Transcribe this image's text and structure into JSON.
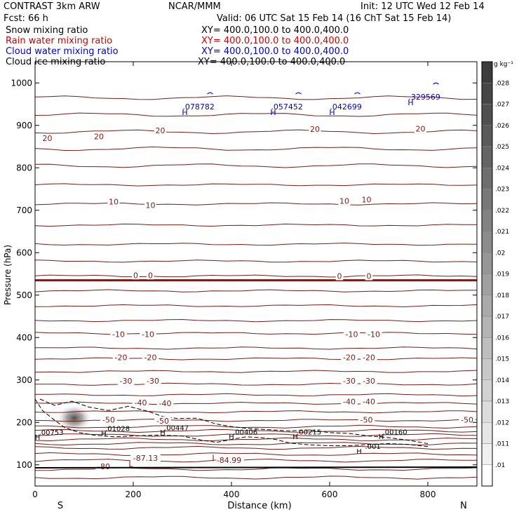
{
  "header": {
    "model": "CONTRAST  3km ARW",
    "org": "NCAR/MMM",
    "init": "Init: 12 UTC Wed 12 Feb 14",
    "fcst": "Fcst:   66 h",
    "valid": "Valid: 06 UTC Sat 15 Feb 14 (16 ChT Sat 15 Feb 14)"
  },
  "legend": [
    {
      "label": "Snow mixing ratio",
      "xy": "XY= 400.0,100.0 to 400.0,400.0",
      "color": "#000000"
    },
    {
      "label": "Rain water mixing ratio",
      "xy": "XY= 400.0,100.0 to 400.0,400.0",
      "color": "#cc0000"
    },
    {
      "label": "Cloud water mixing ratio",
      "xy": "XY= 400.0,100.0 to 400.0,400.0",
      "color": "#0000cc"
    },
    {
      "label": "Cloud ice mixing ratio",
      "xy": "XY= 400.0,100.0 to 400.0,400.0",
      "color": "#000000"
    }
  ],
  "chart_data": {
    "type": "contour-cross-section",
    "xlabel": "Distance (km)",
    "ylabel": "Pressure (hPa)",
    "xlim": [
      0,
      900
    ],
    "ylim": [
      1050,
      50
    ],
    "x_ticks": [
      "0",
      "200",
      "400",
      "600",
      "800"
    ],
    "x_tick_values": [
      0,
      200,
      400,
      600,
      800
    ],
    "y_ticks": [
      "100",
      "200",
      "300",
      "400",
      "500",
      "600",
      "700",
      "800",
      "900",
      "1000"
    ],
    "y_tick_values": [
      100,
      200,
      300,
      400,
      500,
      600,
      700,
      800,
      900,
      1000
    ],
    "direction_left": "S",
    "direction_right": "N",
    "colorbar": {
      "unit": "g kg⁻¹",
      "labels": [
        ".028",
        ".027",
        ".026",
        ".025",
        ".024",
        ".023",
        ".022",
        ".021",
        ".02",
        ".019",
        ".018",
        ".017",
        ".016",
        ".015",
        ".014",
        ".013",
        ".012",
        ".011",
        ".01"
      ],
      "values": [
        0.028,
        0.027,
        0.026,
        0.025,
        0.024,
        0.023,
        0.022,
        0.021,
        0.02,
        0.019,
        0.018,
        0.017,
        0.016,
        0.015,
        0.014,
        0.013,
        0.012,
        0.011,
        0.01
      ]
    },
    "isotherm_levels_hpa": [
      70,
      90,
      110,
      125,
      140,
      150,
      160,
      170,
      180,
      190,
      205,
      225,
      245,
      265,
      290,
      320,
      350,
      375,
      410,
      440,
      475,
      510,
      545,
      580,
      620,
      665,
      715,
      760,
      805,
      845,
      885,
      925,
      965
    ],
    "freezing_level_hpa": 535,
    "temperature_labels": [
      {
        "text": "-80",
        "x": 140,
        "p": 96
      },
      {
        "text": "-87.13",
        "x": 225,
        "p": 116
      },
      {
        "text": "-84.99",
        "x": 395,
        "p": 111
      },
      {
        "text": "-50",
        "x": 150,
        "p": 206
      },
      {
        "text": "-50",
        "x": 260,
        "p": 204
      },
      {
        "text": "-50",
        "x": 675,
        "p": 206
      },
      {
        "text": "-50",
        "x": 880,
        "p": 206
      },
      {
        "text": "-40",
        "x": 215,
        "p": 247
      },
      {
        "text": "-40",
        "x": 265,
        "p": 245
      },
      {
        "text": "-40",
        "x": 640,
        "p": 249
      },
      {
        "text": "-40",
        "x": 680,
        "p": 249
      },
      {
        "text": "-30",
        "x": 185,
        "p": 298
      },
      {
        "text": "-30",
        "x": 240,
        "p": 298
      },
      {
        "text": "-30",
        "x": 640,
        "p": 298
      },
      {
        "text": "-30",
        "x": 680,
        "p": 298
      },
      {
        "text": "-20",
        "x": 175,
        "p": 353
      },
      {
        "text": "-20",
        "x": 235,
        "p": 353
      },
      {
        "text": "-20",
        "x": 640,
        "p": 353
      },
      {
        "text": "-20",
        "x": 680,
        "p": 353
      },
      {
        "text": "-10",
        "x": 170,
        "p": 408
      },
      {
        "text": "-10",
        "x": 230,
        "p": 408
      },
      {
        "text": "-10",
        "x": 645,
        "p": 408
      },
      {
        "text": "-10",
        "x": 690,
        "p": 408
      },
      {
        "text": "0",
        "x": 205,
        "p": 547
      },
      {
        "text": "0",
        "x": 235,
        "p": 547
      },
      {
        "text": "0",
        "x": 620,
        "p": 545
      },
      {
        "text": "0",
        "x": 680,
        "p": 545
      },
      {
        "text": "10",
        "x": 160,
        "p": 720
      },
      {
        "text": "10",
        "x": 235,
        "p": 712
      },
      {
        "text": "10",
        "x": 630,
        "p": 722
      },
      {
        "text": "10",
        "x": 675,
        "p": 725
      },
      {
        "text": "20",
        "x": 25,
        "p": 870
      },
      {
        "text": "20",
        "x": 130,
        "p": 874
      },
      {
        "text": "20",
        "x": 255,
        "p": 888
      },
      {
        "text": "20",
        "x": 570,
        "p": 891
      },
      {
        "text": "20",
        "x": 785,
        "p": 892
      }
    ],
    "low_centers": [
      {
        "text": "L",
        "x": 195,
        "p": 102
      },
      {
        "text": "L",
        "x": 365,
        "p": 117
      }
    ],
    "cloud_ice_maxima": [
      {
        "label": ".00753",
        "x": 5,
        "p": 177
      },
      {
        "label": ".01028",
        "x": 140,
        "p": 186
      },
      {
        "label": ".00447",
        "x": 260,
        "p": 188
      },
      {
        "label": ".00406",
        "x": 400,
        "p": 178
      },
      {
        "label": ".00215",
        "x": 530,
        "p": 178
      },
      {
        "label": ".001",
        "x": 660,
        "p": 144
      },
      {
        "label": ".00160",
        "x": 705,
        "p": 178
      }
    ],
    "cloud_water_maxima": [
      {
        "label": ".078782",
        "x": 305,
        "p": 944
      },
      {
        "label": ".057452",
        "x": 485,
        "p": 944
      },
      {
        "label": ".042699",
        "x": 605,
        "p": 944
      },
      {
        "label": ".329569",
        "x": 765,
        "p": 967
      }
    ],
    "snow_max": {
      "x": 80,
      "p": 210,
      "value": 0.028
    }
  }
}
